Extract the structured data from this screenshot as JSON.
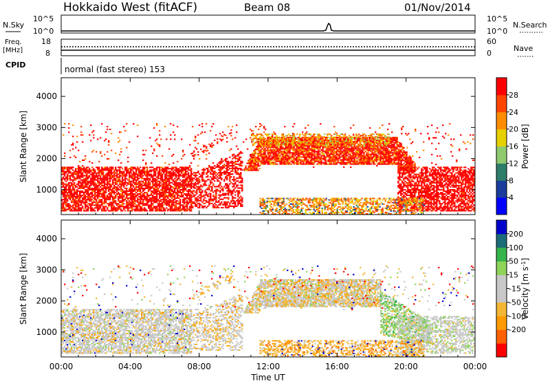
{
  "header": {
    "radar": "Hokkaido West (fitACF)",
    "beam": "Beam 08",
    "date": "01/Nov/2014"
  },
  "strips": {
    "nsky_label": "N.Sky",
    "nsky_ticks": [
      "10^5",
      "10^0"
    ],
    "nsearch_label": "N.Search",
    "freq_label_line1": "Freq.",
    "freq_label_line2": "[MHz]",
    "freq_ticks": [
      "18",
      "8"
    ],
    "nave_label": "Nave",
    "nave_ticks": [
      "60",
      "0"
    ],
    "cpid_label": "CPID",
    "cpid_text": "normal (fast stereo) 153"
  },
  "colors": {
    "power_scale": [
      "#0000ff",
      "#1a3c9c",
      "#2e7d6a",
      "#8fca6e",
      "#e6d000",
      "#ff8c00",
      "#ff4400",
      "#ff0000"
    ],
    "velocity_scale": [
      "#ff0000",
      "#ff6000",
      "#ff9a00",
      "#f3b735",
      "#c8c8c8",
      "#c8c8c8",
      "#8fd35a",
      "#35b44a",
      "#1d6b78",
      "#0000cc"
    ]
  },
  "chart_data": [
    {
      "type": "heatmap",
      "title": "",
      "xlabel": "Time UT",
      "ylabel": "Slant Range [km]",
      "x_ticks": [
        "00:00",
        "04:00",
        "08:00",
        "12:00",
        "16:00",
        "20:00",
        "00:00"
      ],
      "y_ticks": [
        "1000",
        "2000",
        "3000",
        "4000"
      ],
      "ylim": [
        200,
        4600
      ],
      "colorbar": {
        "label": "Power [dB]",
        "ticks": [
          "4",
          "8",
          "12",
          "16",
          "20",
          "24",
          "28"
        ],
        "range": [
          0,
          32
        ]
      },
      "regions": [
        {
          "x": [
            0.0,
            7.0
          ],
          "y": [
            300,
            1700
          ],
          "dominant": "red"
        },
        {
          "x": [
            10.5,
            19.5
          ],
          "y": [
            1700,
            2500
          ],
          "dominant": "red"
        },
        {
          "x": [
            11.0,
            19.0
          ],
          "y": [
            2200,
            2700
          ],
          "dominant": "orange"
        },
        {
          "x": [
            19.5,
            24.0
          ],
          "y": [
            300,
            1700
          ],
          "dominant": "red"
        },
        {
          "x": [
            11.5,
            21.0
          ],
          "y": [
            200,
            600
          ],
          "dominant": "orange"
        }
      ]
    },
    {
      "type": "heatmap",
      "title": "",
      "xlabel": "Time UT",
      "ylabel": "Slant Range [km]",
      "x_ticks": [
        "00:00",
        "04:00",
        "08:00",
        "12:00",
        "16:00",
        "20:00",
        "00:00"
      ],
      "y_ticks": [
        "1000",
        "2000",
        "3000",
        "4000"
      ],
      "ylim": [
        200,
        4600
      ],
      "colorbar": {
        "label": "Velocity [m s^-1]",
        "ticks": [
          "200",
          "100",
          "50",
          "15",
          "-15",
          "-50",
          "-100",
          "-200"
        ],
        "range": [
          -250,
          250
        ]
      },
      "regions": [
        {
          "x": [
            0.0,
            7.0
          ],
          "y": [
            300,
            1700
          ],
          "dominant": "grey"
        },
        {
          "x": [
            10.5,
            19.5
          ],
          "y": [
            1700,
            2700
          ],
          "dominant": "grey/orange"
        },
        {
          "x": [
            18.5,
            21.5
          ],
          "y": [
            900,
            2200
          ],
          "dominant": "green"
        },
        {
          "x": [
            11.5,
            21.0
          ],
          "y": [
            200,
            600
          ],
          "dominant": "orange"
        }
      ]
    }
  ]
}
